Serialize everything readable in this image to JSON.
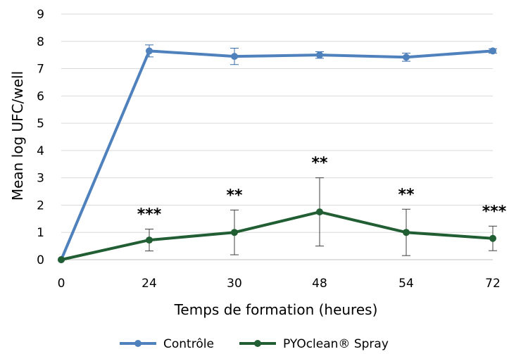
{
  "chart_data": {
    "type": "line",
    "title": "",
    "xlabel": "Temps de formation (heures)",
    "ylabel": "Mean log UFC/well",
    "categories": [
      "0",
      "24",
      "30",
      "48",
      "54",
      "72"
    ],
    "ylim": [
      0,
      9
    ],
    "yticks": [
      "0",
      "1",
      "2",
      "3",
      "4",
      "5",
      "6",
      "7",
      "8",
      "9"
    ],
    "grid": "horizontal",
    "legend_position": "bottom",
    "series": [
      {
        "name": "Contrôle",
        "color": "#4f81bd",
        "values": [
          0,
          7.65,
          7.45,
          7.5,
          7.42,
          7.65
        ],
        "errors": [
          0,
          0.22,
          0.3,
          0.12,
          0.15,
          0.08
        ]
      },
      {
        "name": "PYOclean® Spray",
        "color": "#215e33",
        "values": [
          0,
          0.72,
          1.0,
          1.75,
          1.0,
          0.78
        ],
        "errors": [
          0,
          0.4,
          0.82,
          1.25,
          0.85,
          0.45
        ]
      }
    ],
    "annotations": [
      "",
      "***",
      "**",
      "**",
      "**",
      "***"
    ]
  }
}
